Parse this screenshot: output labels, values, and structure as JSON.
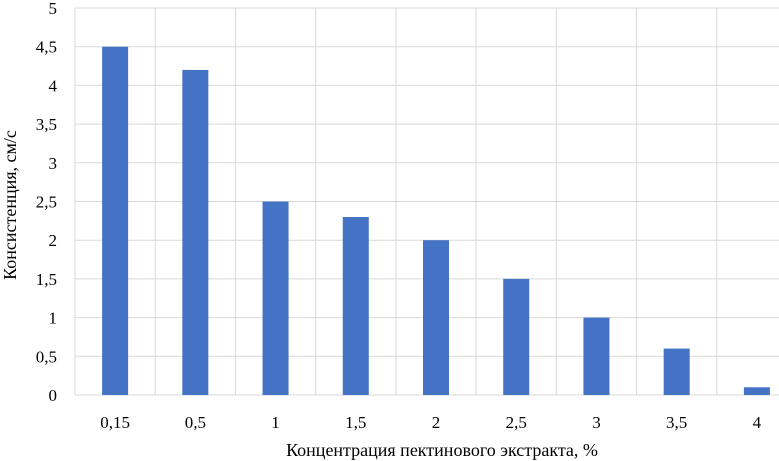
{
  "chart_data": {
    "type": "bar",
    "title": "",
    "xlabel": "Концентрация пектинового экстракта, %",
    "ylabel": "Консистенция, см/с",
    "categories": [
      "0,15",
      "0,5",
      "1",
      "1,5",
      "2",
      "2,5",
      "3",
      "3,5",
      "4"
    ],
    "values": [
      4.5,
      4.2,
      2.5,
      2.3,
      2.0,
      1.5,
      1.0,
      0.6,
      0.1
    ],
    "ylim": [
      0,
      5
    ],
    "ystep": 0.5,
    "yticks": [
      "0",
      "0,5",
      "1",
      "1,5",
      "2",
      "2,5",
      "3",
      "3,5",
      "4",
      "4,5",
      "5"
    ],
    "grid": true,
    "bar_color": "#4472C4",
    "grid_color": "#D9D9D9"
  }
}
